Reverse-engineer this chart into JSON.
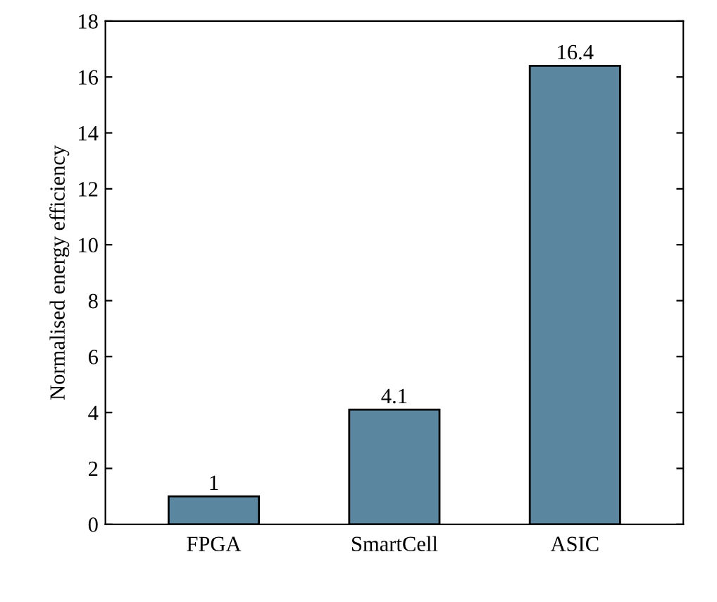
{
  "chart_data": {
    "type": "bar",
    "ylabel": "Normalised energy efficiency",
    "categories": [
      "FPGA",
      "SmartCell",
      "ASIC"
    ],
    "values": [
      1,
      4.1,
      16.4
    ],
    "color": "#5b86a0",
    "ylim": [
      0,
      18
    ],
    "yticks": [
      0,
      2,
      4,
      6,
      8,
      10,
      12,
      14,
      16,
      18
    ],
    "data_labels": true,
    "grid": false,
    "legend": false
  }
}
